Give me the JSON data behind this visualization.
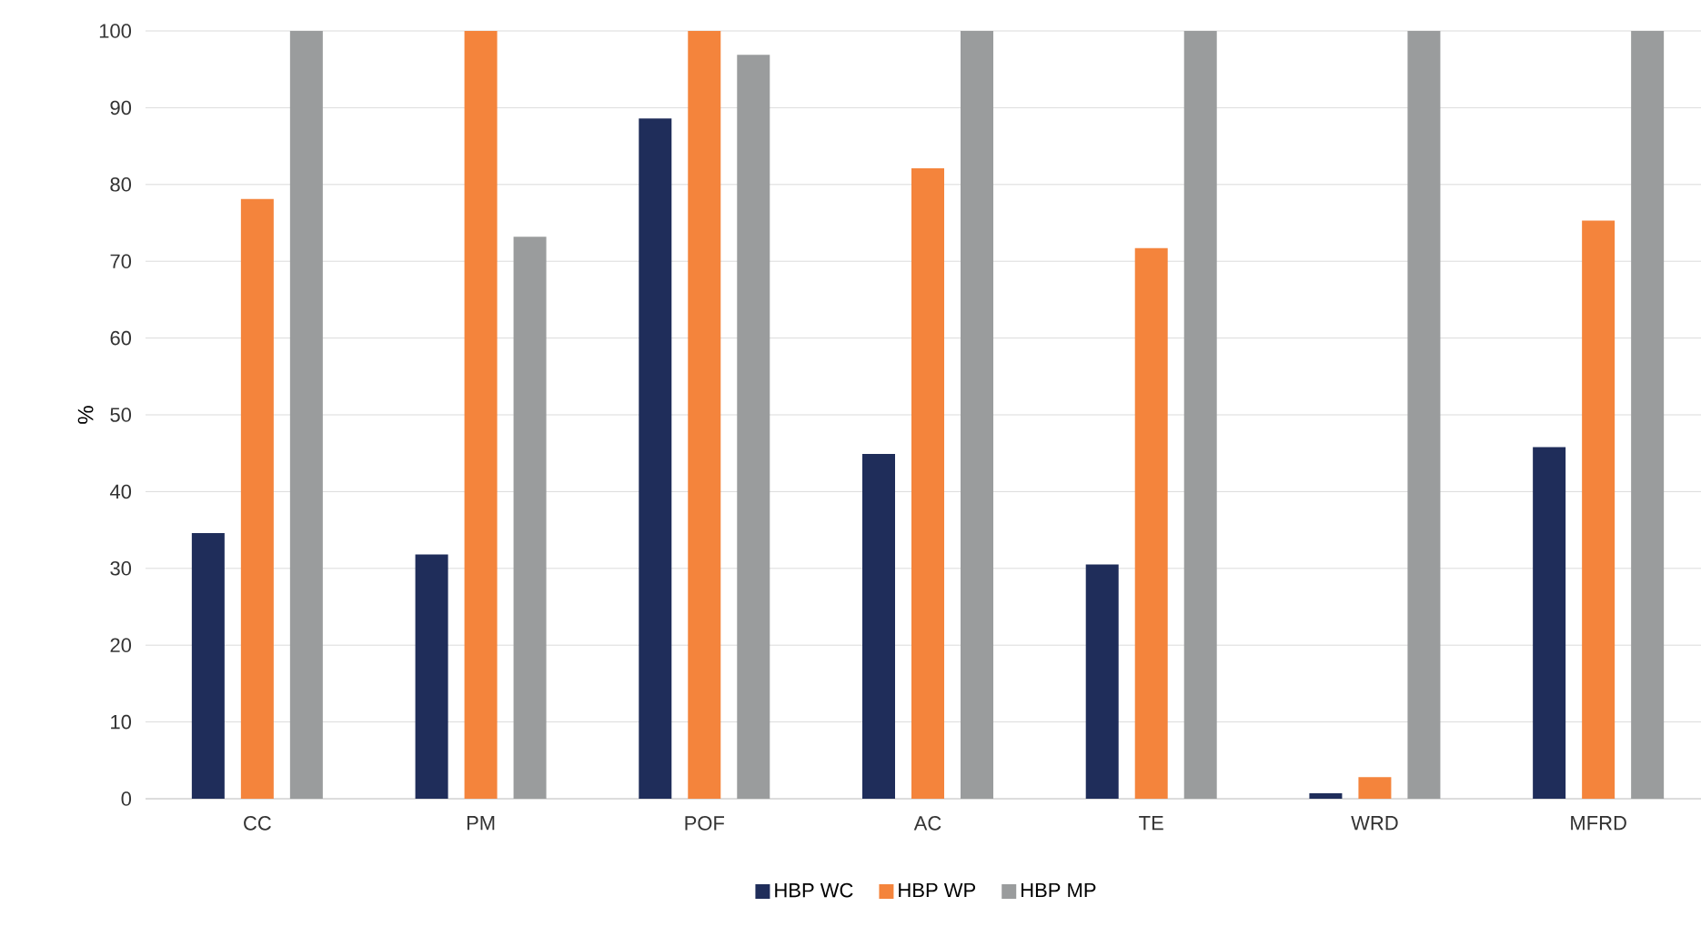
{
  "chart_data": {
    "type": "bar",
    "ylabel": "%",
    "categories": [
      "CC",
      "PM",
      "POF",
      "AC",
      "TE",
      "WRD",
      "MFRD"
    ],
    "series": [
      {
        "name": "HBP WC",
        "color": "#1f2d5a",
        "values": [
          34.6,
          31.8,
          88.6,
          44.9,
          30.5,
          0.7,
          45.8
        ]
      },
      {
        "name": "HBP WP",
        "color": "#f4843c",
        "values": [
          78.1,
          100,
          100,
          82.1,
          71.7,
          2.8,
          75.3
        ]
      },
      {
        "name": "HBP MP",
        "color": "#9a9c9d",
        "values": [
          100,
          73.2,
          96.9,
          100,
          100,
          100,
          100
        ]
      }
    ],
    "ylim": [
      0,
      100
    ],
    "yticks": [
      0,
      10,
      20,
      30,
      40,
      50,
      60,
      70,
      80,
      90,
      100
    ],
    "grid": "y",
    "legend": "bottom"
  }
}
